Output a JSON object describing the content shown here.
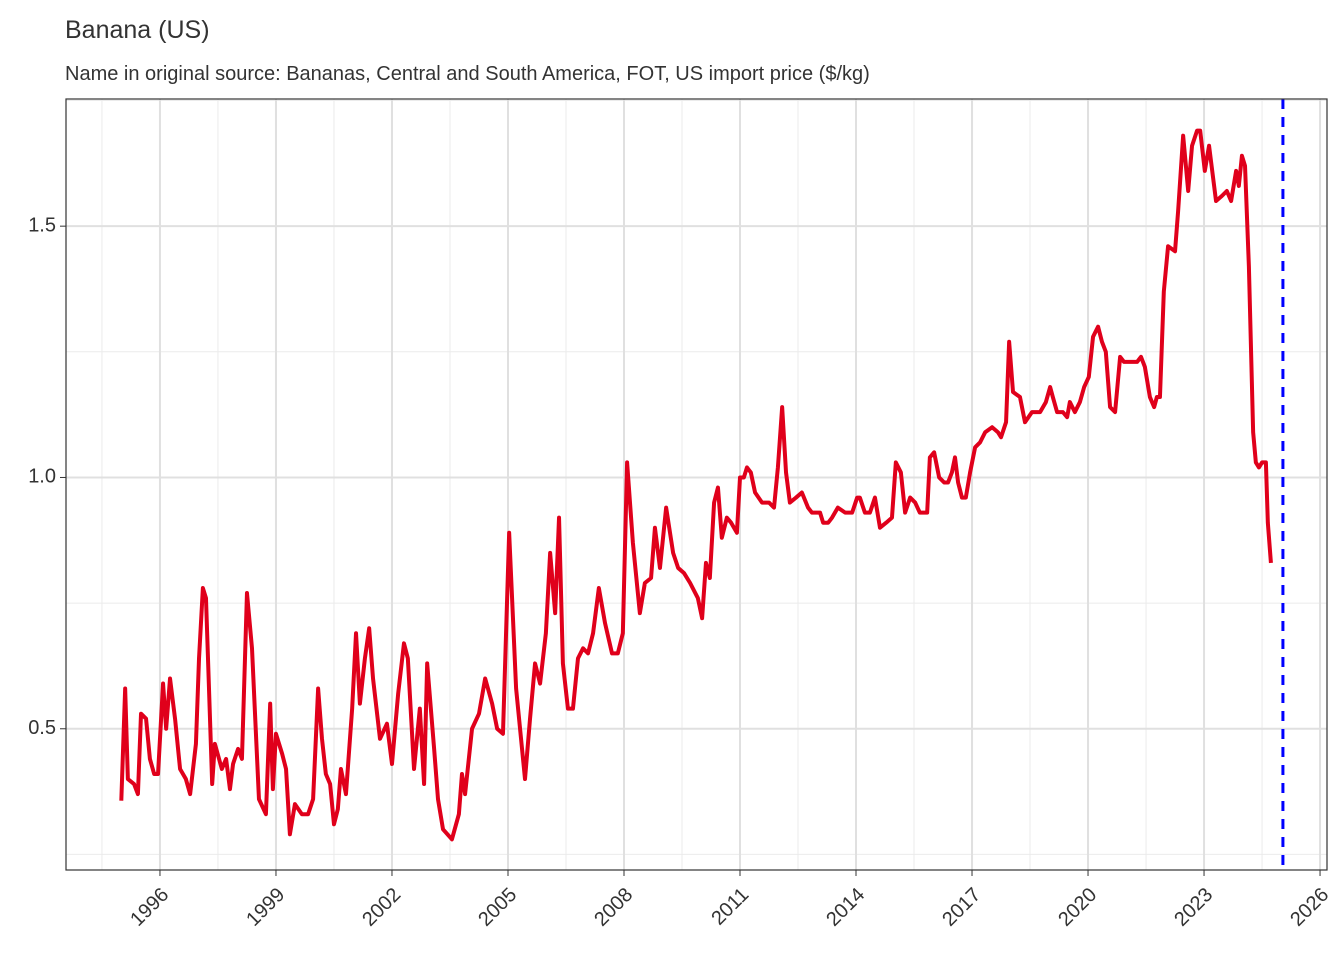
{
  "chart_data": {
    "type": "line",
    "title": "Banana (US)",
    "subtitle": "Name in original source: Bananas, Central and South America, FOT, US import price ($/kg)",
    "color": "#e0001b",
    "x": [
      1995.0,
      1995.1,
      1995.17,
      1995.33,
      1995.43,
      1995.51,
      1995.64,
      1995.74,
      1995.85,
      1995.95,
      1996.08,
      1996.16,
      1996.26,
      1996.39,
      1996.52,
      1996.67,
      1996.78,
      1996.93,
      1997.01,
      1997.11,
      1997.19,
      1997.35,
      1997.42,
      1997.6,
      1997.71,
      1997.81,
      1997.89,
      1998.02,
      1998.12,
      1998.25,
      1998.38,
      1998.56,
      1998.74,
      1998.85,
      1998.92,
      1999.0,
      1999.16,
      1999.26,
      1999.36,
      1999.49,
      1999.67,
      1999.83,
      1999.96,
      2000.09,
      2000.19,
      2000.29,
      2000.4,
      2000.5,
      2000.6,
      2000.68,
      2000.81,
      2000.97,
      2001.07,
      2001.17,
      2001.3,
      2001.41,
      2001.51,
      2001.69,
      2001.87,
      2002.0,
      2002.16,
      2002.31,
      2002.41,
      2002.57,
      2002.72,
      2002.83,
      2002.91,
      2003.09,
      2003.19,
      2003.32,
      2003.55,
      2003.73,
      2003.81,
      2003.89,
      2004.07,
      2004.25,
      2004.41,
      2004.59,
      2004.72,
      2004.87,
      2005.03,
      2005.21,
      2005.44,
      2005.57,
      2005.7,
      2005.83,
      2005.98,
      2006.09,
      2006.22,
      2006.32,
      2006.42,
      2006.55,
      2006.68,
      2006.81,
      2006.94,
      2007.07,
      2007.2,
      2007.35,
      2007.51,
      2007.69,
      2007.84,
      2007.97,
      2008.08,
      2008.23,
      2008.41,
      2008.54,
      2008.7,
      2008.8,
      2008.93,
      2009.09,
      2009.19,
      2009.27,
      2009.4,
      2009.55,
      2009.71,
      2009.91,
      2010.02,
      2010.12,
      2010.22,
      2010.33,
      2010.43,
      2010.53,
      2010.66,
      2010.77,
      2010.92,
      2011.0,
      2011.1,
      2011.18,
      2011.28,
      2011.39,
      2011.57,
      2011.75,
      2011.88,
      2011.98,
      2012.09,
      2012.19,
      2012.29,
      2012.45,
      2012.6,
      2012.76,
      2012.86,
      2013.07,
      2013.15,
      2013.28,
      2013.38,
      2013.53,
      2013.72,
      2013.9,
      2014.03,
      2014.1,
      2014.23,
      2014.36,
      2014.49,
      2014.62,
      2014.78,
      2014.93,
      2015.03,
      2015.16,
      2015.27,
      2015.4,
      2015.53,
      2015.65,
      2015.84,
      2015.91,
      2016.02,
      2016.15,
      2016.28,
      2016.38,
      2016.48,
      2016.56,
      2016.64,
      2016.74,
      2016.84,
      2016.95,
      2017.08,
      2017.21,
      2017.34,
      2017.52,
      2017.67,
      2017.75,
      2017.88,
      2017.96,
      2018.06,
      2018.24,
      2018.37,
      2018.55,
      2018.76,
      2018.91,
      2019.02,
      2019.09,
      2019.2,
      2019.35,
      2019.46,
      2019.53,
      2019.66,
      2019.79,
      2019.9,
      2020.02,
      2020.13,
      2020.26,
      2020.36,
      2020.46,
      2020.57,
      2020.7,
      2020.83,
      2020.93,
      2021.09,
      2021.27,
      2021.37,
      2021.47,
      2021.6,
      2021.71,
      2021.78,
      2021.86,
      2021.96,
      2022.07,
      2022.25,
      2022.33,
      2022.46,
      2022.59,
      2022.69,
      2022.82,
      2022.9,
      2023.02,
      2023.13,
      2023.31,
      2023.46,
      2023.59,
      2023.7,
      2023.83,
      2023.9,
      2023.98,
      2024.06,
      2024.16,
      2024.27,
      2024.34,
      2024.42,
      2024.5,
      2024.6,
      2024.65,
      2024.73
    ],
    "values": [
      0.357,
      0.58,
      0.4,
      0.39,
      0.37,
      0.53,
      0.52,
      0.44,
      0.41,
      0.41,
      0.59,
      0.5,
      0.6,
      0.52,
      0.42,
      0.4,
      0.37,
      0.47,
      0.64,
      0.78,
      0.76,
      0.39,
      0.47,
      0.42,
      0.44,
      0.38,
      0.43,
      0.46,
      0.44,
      0.77,
      0.66,
      0.36,
      0.33,
      0.55,
      0.38,
      0.49,
      0.45,
      0.42,
      0.29,
      0.35,
      0.33,
      0.33,
      0.36,
      0.58,
      0.48,
      0.41,
      0.39,
      0.31,
      0.34,
      0.42,
      0.37,
      0.54,
      0.69,
      0.55,
      0.64,
      0.7,
      0.6,
      0.48,
      0.51,
      0.43,
      0.57,
      0.67,
      0.64,
      0.42,
      0.54,
      0.39,
      0.63,
      0.46,
      0.36,
      0.3,
      0.28,
      0.33,
      0.41,
      0.37,
      0.5,
      0.53,
      0.6,
      0.55,
      0.5,
      0.49,
      0.89,
      0.58,
      0.4,
      0.52,
      0.63,
      0.59,
      0.69,
      0.85,
      0.73,
      0.92,
      0.63,
      0.54,
      0.54,
      0.64,
      0.66,
      0.65,
      0.69,
      0.78,
      0.71,
      0.65,
      0.65,
      0.69,
      1.03,
      0.87,
      0.73,
      0.79,
      0.8,
      0.9,
      0.82,
      0.94,
      0.89,
      0.85,
      0.82,
      0.81,
      0.79,
      0.76,
      0.72,
      0.83,
      0.8,
      0.95,
      0.98,
      0.88,
      0.92,
      0.91,
      0.89,
      1.0,
      1.0,
      1.02,
      1.01,
      0.97,
      0.95,
      0.95,
      0.94,
      1.02,
      1.14,
      1.01,
      0.95,
      0.96,
      0.97,
      0.94,
      0.93,
      0.93,
      0.91,
      0.91,
      0.92,
      0.94,
      0.93,
      0.93,
      0.96,
      0.96,
      0.93,
      0.93,
      0.96,
      0.9,
      0.91,
      0.92,
      1.03,
      1.01,
      0.93,
      0.96,
      0.95,
      0.93,
      0.93,
      1.04,
      1.05,
      1.0,
      0.99,
      0.99,
      1.01,
      1.04,
      0.99,
      0.96,
      0.96,
      1.01,
      1.06,
      1.07,
      1.09,
      1.1,
      1.09,
      1.08,
      1.11,
      1.27,
      1.17,
      1.16,
      1.11,
      1.13,
      1.13,
      1.15,
      1.18,
      1.16,
      1.13,
      1.13,
      1.12,
      1.15,
      1.13,
      1.15,
      1.18,
      1.2,
      1.28,
      1.3,
      1.27,
      1.25,
      1.14,
      1.13,
      1.24,
      1.23,
      1.23,
      1.23,
      1.24,
      1.22,
      1.16,
      1.14,
      1.16,
      1.16,
      1.37,
      1.46,
      1.45,
      1.53,
      1.68,
      1.57,
      1.66,
      1.69,
      1.69,
      1.61,
      1.66,
      1.55,
      1.56,
      1.57,
      1.55,
      1.61,
      1.58,
      1.64,
      1.62,
      1.42,
      1.09,
      1.03,
      1.02,
      1.03,
      1.03,
      0.91,
      0.83
    ],
    "xlim": [
      1993.57,
      2026.18
    ],
    "ylim": [
      0.219,
      1.753
    ],
    "xticks": [
      1996,
      1999,
      2002,
      2005,
      2008,
      2011,
      2014,
      2017,
      2020,
      2023,
      2026
    ],
    "yticks": [
      0.5,
      {
        "value": 1,
        "label": "1.0"
      },
      1.5
    ],
    "minor_xticks": [
      1994.5,
      1997.5,
      2000.5,
      2003.5,
      2006.5,
      2009.5,
      2012.5,
      2015.5,
      2018.5,
      2021.5,
      2024.5
    ],
    "minor_yticks": [
      0.25,
      0.75,
      1.25,
      1.75
    ],
    "grid": true,
    "reference_line": {
      "x": 2025.04,
      "color": "#0000ff",
      "style": "dashed"
    }
  }
}
